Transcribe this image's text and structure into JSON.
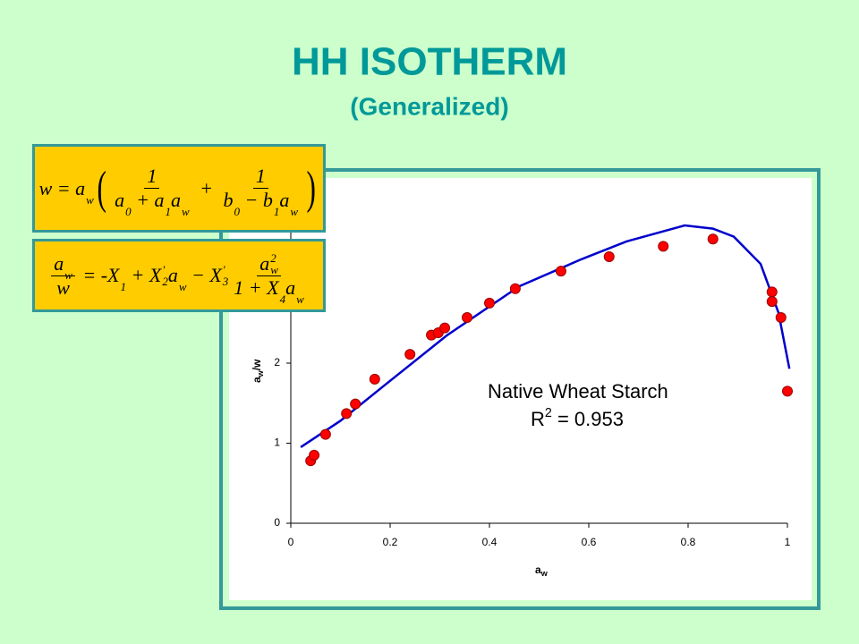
{
  "title": "HH ISOTHERM",
  "subtitle": "(Generalized)",
  "equations": [
    [
      {
        "t": "w"
      },
      " = ",
      {
        "t": "a",
        "sub": "w"
      },
      {
        "open": "(",
        "close": ")",
        "paren": [
          {
            "frac": {
              "num": [
                "1"
              ],
              "den": [
                {
                  "t": "a",
                  "sub": "0"
                },
                " + ",
                {
                  "t": "a",
                  "sub": "1"
                },
                {
                  "t": "a",
                  "sub": "w"
                }
              ]
            }
          },
          " + ",
          {
            "frac": {
              "num": [
                "1"
              ],
              "den": [
                {
                  "t": "b",
                  "sub": "0"
                },
                " − ",
                {
                  "t": "b",
                  "sub": "1"
                },
                {
                  "t": "a",
                  "sub": "w"
                }
              ]
            }
          }
        ]
      }
    ],
    [
      {
        "frac": {
          "num": [
            {
              "t": "a",
              "sub": "w"
            }
          ],
          "den": [
            "w"
          ]
        }
      },
      " = -",
      {
        "t": "X",
        "sub": "1"
      },
      " + ",
      {
        "t": "X",
        "sup": "'",
        "sub": "2"
      },
      {
        "t": "a",
        "sub": "w"
      },
      " − ",
      {
        "t": "X",
        "sup": "'",
        "sub": "3"
      },
      {
        "frac": {
          "num": [
            {
              "t": "a",
              "sub": "w",
              "sup": "2"
            }
          ],
          "den": [
            "1 + ",
            {
              "t": "X",
              "sub": "4"
            },
            {
              "t": "a",
              "sub": "w"
            }
          ]
        }
      }
    ]
  ],
  "chart_data": {
    "type": "scatter",
    "xlabel": {
      "t": "a",
      "sub": "w"
    },
    "ylabel": {
      "t": "a",
      "sub": "w",
      "rest": "/w"
    },
    "xlim": [
      0,
      1
    ],
    "ylim": [
      0,
      4
    ],
    "xticks": [
      0,
      0.2,
      0.4,
      0.6,
      0.8,
      1
    ],
    "yticks": [
      0,
      1,
      2
    ],
    "grid": false,
    "points": {
      "color": "#ff0000",
      "x": [
        0.04,
        0.047,
        0.07,
        0.112,
        0.13,
        0.169,
        0.24,
        0.283,
        0.297,
        0.31,
        0.355,
        0.4,
        0.452,
        0.544,
        0.641,
        0.75,
        0.85,
        0.969,
        0.969,
        0.987,
        1.0
      ],
      "y": [
        0.78,
        0.85,
        1.11,
        1.37,
        1.49,
        1.8,
        2.11,
        2.35,
        2.38,
        2.44,
        2.57,
        2.75,
        2.93,
        3.15,
        3.33,
        3.46,
        3.55,
        2.89,
        2.77,
        2.57,
        1.65
      ]
    },
    "fit": {
      "color": "#0000cc",
      "x": [
        0.02,
        0.1,
        0.19,
        0.315,
        0.46,
        0.586,
        0.676,
        0.793,
        0.85,
        0.892,
        0.946,
        0.982,
        1.004
      ],
      "y": [
        0.95,
        1.28,
        1.73,
        2.35,
        2.96,
        3.3,
        3.52,
        3.72,
        3.68,
        3.58,
        3.24,
        2.63,
        1.93
      ]
    },
    "annotation": "Native Wheat Starch",
    "r2": {
      "t": "R",
      "sup": "2",
      "rest": " = 0.953"
    }
  }
}
